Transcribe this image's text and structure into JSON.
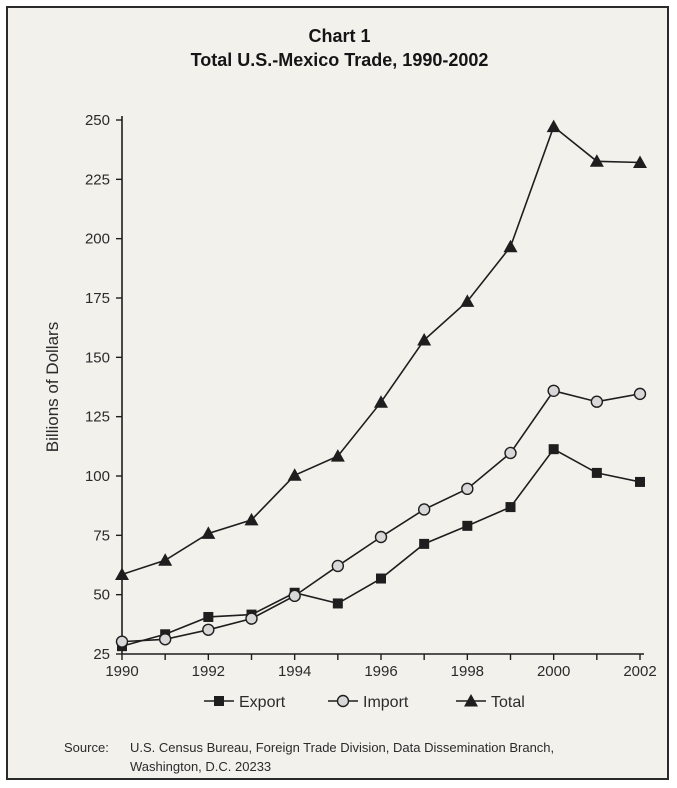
{
  "chart_data": {
    "type": "line",
    "title": "Chart 1",
    "subtitle": "Total U.S.-Mexico Trade, 1990-2002",
    "xlabel": "",
    "ylabel": "Billions of Dollars",
    "x": [
      1990,
      1991,
      1992,
      1993,
      1994,
      1995,
      1996,
      1997,
      1998,
      1999,
      2000,
      2001,
      2002
    ],
    "x_tick_labels": [
      "1990",
      "1992",
      "1994",
      "1996",
      "1998",
      "2000",
      "2002"
    ],
    "x_tick_values": [
      1990,
      1992,
      1994,
      1996,
      1998,
      2000,
      2002
    ],
    "y_tick_labels": [
      "25",
      "50",
      "75",
      "100",
      "125",
      "150",
      "175",
      "200",
      "225",
      "250"
    ],
    "y_tick_values": [
      25,
      50,
      75,
      100,
      125,
      150,
      175,
      200,
      225,
      250
    ],
    "xlim": [
      1990,
      2002
    ],
    "ylim": [
      25,
      250
    ],
    "grid": false,
    "legend_position": "bottom",
    "series": [
      {
        "name": "Export",
        "marker": "square",
        "color": "#1e1e1e",
        "values": [
          28.3,
          33.3,
          40.6,
          41.6,
          50.8,
          46.3,
          56.8,
          71.4,
          79.0,
          86.9,
          111.3,
          101.3,
          97.5
        ]
      },
      {
        "name": "Import",
        "marker": "circle",
        "color": "#1e1e1e",
        "values": [
          30.2,
          31.2,
          35.2,
          39.9,
          49.5,
          62.1,
          74.3,
          85.9,
          94.6,
          109.7,
          135.9,
          131.3,
          134.6
        ]
      },
      {
        "name": "Total",
        "marker": "triangle",
        "color": "#1e1e1e",
        "values": [
          58.5,
          64.5,
          75.8,
          81.5,
          100.3,
          108.4,
          131.1,
          157.3,
          173.6,
          196.6,
          247.2,
          232.6,
          232.1
        ]
      }
    ]
  },
  "source": {
    "label": "Source:",
    "line1": "U.S. Census Bureau, Foreign Trade Division, Data Dissemination Branch,",
    "line2": "Washington, D.C. 20233"
  }
}
